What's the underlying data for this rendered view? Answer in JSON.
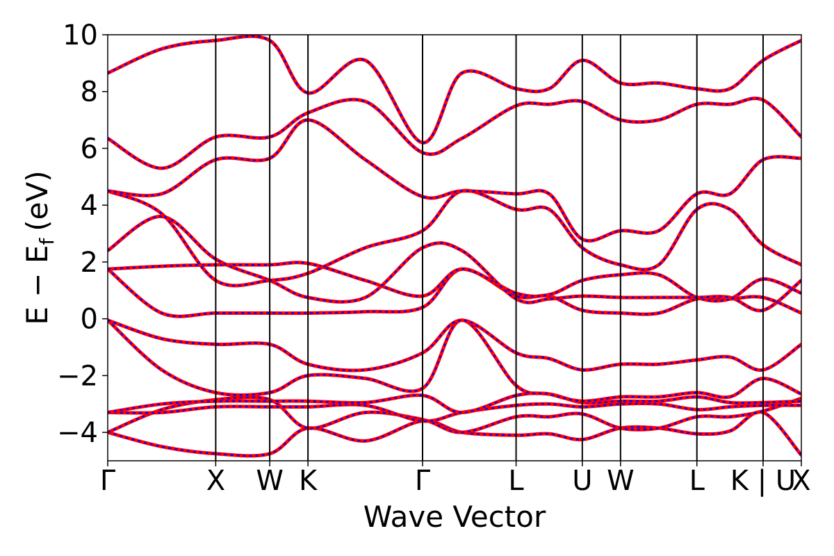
{
  "chart_data": {
    "type": "line",
    "title": "",
    "xlabel": "Wave Vector",
    "ylabel": "E − E",
    "ylabel_subscript": "f",
    "ylabel_unit": "(eV)",
    "ylim": [
      -5,
      10
    ],
    "y_ticks": [
      {
        "value": 10,
        "label": "10"
      },
      {
        "value": 8,
        "label": "8"
      },
      {
        "value": 6,
        "label": "6"
      },
      {
        "value": 4,
        "label": "4"
      },
      {
        "value": 2,
        "label": "2"
      },
      {
        "value": 0,
        "label": "0"
      },
      {
        "value": -2,
        "label": "−2"
      },
      {
        "value": -4,
        "label": "−4"
      }
    ],
    "k_points": [
      {
        "label": "Γ",
        "k": 0.0
      },
      {
        "label": "X",
        "k": 1.0
      },
      {
        "label": "W",
        "k": 1.5
      },
      {
        "label": "K",
        "k": 1.854
      },
      {
        "label": "Γ",
        "k": 2.915
      },
      {
        "label": "L",
        "k": 3.781
      },
      {
        "label": "U",
        "k": 4.394
      },
      {
        "label": "W",
        "k": 4.748
      },
      {
        "label": "L",
        "k": 5.455
      },
      {
        "label": "K | U",
        "k": 6.068
      },
      {
        "label": "X",
        "k": 6.422
      }
    ],
    "series_colors": {
      "dft": "#ff0000",
      "model": "#0000ff"
    },
    "series": [
      {
        "values": [
          -4.0,
          -4.5,
          -4.75,
          -4.75,
          -3.85,
          -4.3,
          -3.6,
          -4.0,
          -4.1,
          -4.05,
          -4.25,
          -3.85,
          -3.85,
          -4.05,
          -3.95,
          -3.3,
          -4.8
        ]
      },
      {
        "values": [
          -4.0,
          -3.2,
          -2.85,
          -2.85,
          -3.85,
          -3.3,
          -3.55,
          -4.0,
          -3.45,
          -3.45,
          -3.35,
          -3.85,
          -3.85,
          -3.45,
          -3.45,
          -3.25,
          -2.8
        ]
      },
      {
        "values": [
          -3.3,
          -3.3,
          -3.1,
          -3.1,
          -3.1,
          -3.05,
          -3.6,
          -3.3,
          -3.05,
          -3.0,
          -3.1,
          -3.0,
          -3.0,
          -3.2,
          -3.1,
          -3.05,
          -3.05
        ]
      },
      {
        "values": [
          -3.3,
          -3.0,
          -2.9,
          -2.9,
          -2.9,
          -2.95,
          -2.7,
          -3.3,
          -2.7,
          -2.65,
          -2.95,
          -2.9,
          -2.9,
          -2.75,
          -2.95,
          -2.95,
          -2.9
        ]
      },
      {
        "values": [
          -0.05,
          -1.8,
          -2.6,
          -2.6,
          -2.0,
          -2.1,
          -2.45,
          -0.05,
          -2.35,
          -2.65,
          -2.9,
          -2.75,
          -2.75,
          -2.6,
          -2.75,
          -2.1,
          -2.65
        ]
      },
      {
        "values": [
          -0.05,
          -0.7,
          -0.9,
          -0.9,
          -1.6,
          -1.8,
          -1.2,
          -0.05,
          -1.2,
          -1.4,
          -1.8,
          -1.6,
          -1.6,
          -1.45,
          -1.35,
          -1.8,
          -0.9
        ]
      },
      {
        "values": [
          1.75,
          0.2,
          0.2,
          0.2,
          0.2,
          0.25,
          0.4,
          1.75,
          0.8,
          0.8,
          0.3,
          0.2,
          0.2,
          0.7,
          0.7,
          0.75,
          0.2
        ]
      },
      {
        "values": [
          1.75,
          1.85,
          1.9,
          1.9,
          1.95,
          1.35,
          0.8,
          1.75,
          0.9,
          0.85,
          1.35,
          1.55,
          1.55,
          0.75,
          0.7,
          1.4,
          0.9
        ]
      },
      {
        "values": [
          2.4,
          3.6,
          2.1,
          1.35,
          0.75,
          0.75,
          2.5,
          2.4,
          0.7,
          0.7,
          0.8,
          0.75,
          0.75,
          0.75,
          0.75,
          0.3,
          1.35
        ]
      },
      {
        "values": [
          4.5,
          3.7,
          1.35,
          1.35,
          1.6,
          2.5,
          3.1,
          4.5,
          3.85,
          3.85,
          2.5,
          1.9,
          1.9,
          3.85,
          3.85,
          2.6,
          1.9
        ]
      },
      {
        "values": [
          4.5,
          4.4,
          5.6,
          5.65,
          7.0,
          5.6,
          4.3,
          4.5,
          4.4,
          4.4,
          2.8,
          3.1,
          3.1,
          4.4,
          4.4,
          5.6,
          5.65
        ]
      },
      {
        "values": [
          6.35,
          5.3,
          6.4,
          6.4,
          7.25,
          7.65,
          5.85,
          6.35,
          7.5,
          7.55,
          7.65,
          7.0,
          7.0,
          7.55,
          7.55,
          7.7,
          6.4
        ]
      },
      {
        "values": [
          8.65,
          9.5,
          9.8,
          9.8,
          7.95,
          9.1,
          6.2,
          8.65,
          8.1,
          8.1,
          9.1,
          8.3,
          8.3,
          8.1,
          8.1,
          9.1,
          9.8
        ]
      }
    ]
  }
}
